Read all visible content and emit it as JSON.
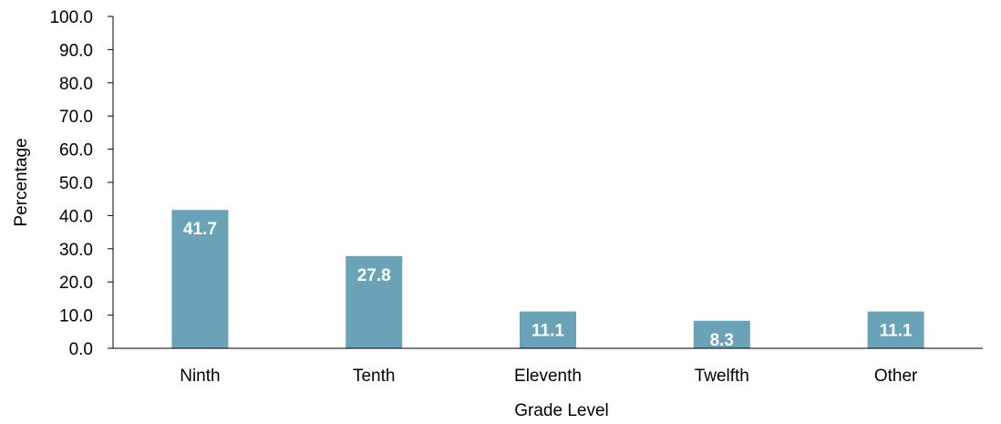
{
  "chart_data": {
    "type": "bar",
    "title": "",
    "xlabel": "Grade Level",
    "ylabel": "Percentage",
    "categories": [
      "Ninth",
      "Tenth",
      "Eleventh",
      "Twelfth",
      "Other"
    ],
    "values": [
      41.7,
      27.8,
      11.1,
      8.3,
      11.1
    ],
    "value_labels": [
      "41.7",
      "27.8",
      "11.1",
      "8.3",
      "11.1"
    ],
    "ylim": [
      0,
      100
    ],
    "yticks": [
      "0.0",
      "10.0",
      "20.0",
      "30.0",
      "40.0",
      "50.0",
      "60.0",
      "70.0",
      "80.0",
      "90.0",
      "100.0"
    ],
    "grid": false,
    "legend": "none",
    "bar_color": "#6aa3b7",
    "axis_color": "#000000"
  }
}
